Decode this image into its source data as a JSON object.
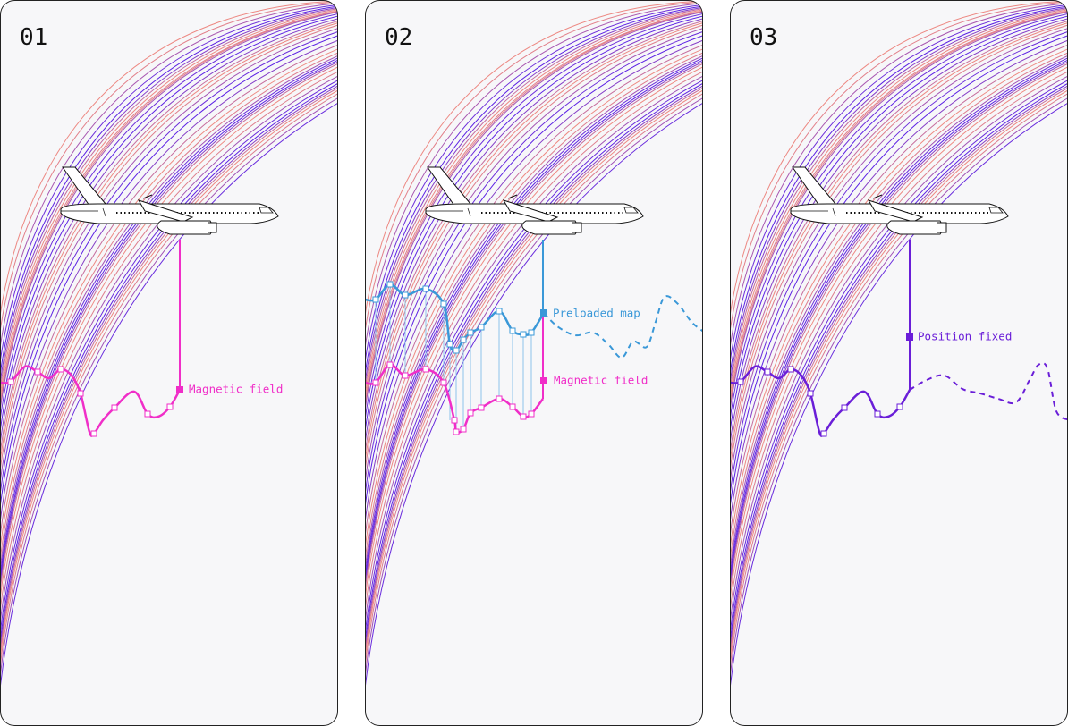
{
  "panels": [
    {
      "number": "01",
      "labels": [
        "Magnetic field"
      ]
    },
    {
      "number": "02",
      "labels": [
        "Preloaded map",
        "Magnetic field"
      ]
    },
    {
      "number": "03",
      "labels": [
        "Position fixed"
      ]
    }
  ]
}
